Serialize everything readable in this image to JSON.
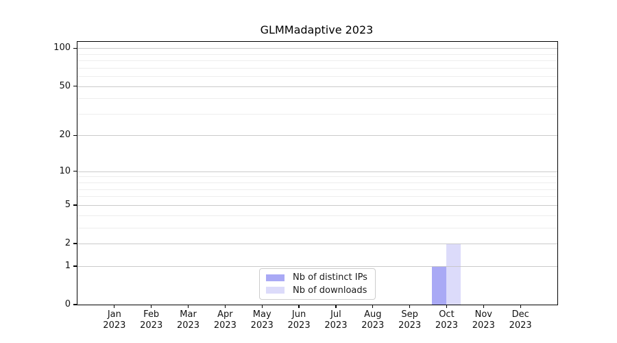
{
  "chart_data": {
    "type": "bar",
    "title": "GLMMadaptive 2023",
    "categories": [
      "Jan",
      "Feb",
      "Mar",
      "Apr",
      "May",
      "Jun",
      "Jul",
      "Aug",
      "Sep",
      "Oct",
      "Nov",
      "Dec"
    ],
    "category_year": "2023",
    "series": [
      {
        "name": "Nb of distinct IPs",
        "color": "#a9a9f5",
        "values": [
          0,
          0,
          0,
          0,
          0,
          0,
          0,
          0,
          0,
          1,
          0,
          0
        ]
      },
      {
        "name": "Nb of downloads",
        "color": "#dcdbfa",
        "values": [
          0,
          0,
          0,
          0,
          0,
          0,
          0,
          0,
          0,
          2,
          0,
          0
        ]
      }
    ],
    "y_axis": {
      "scale": "log1p",
      "tick_values": [
        0,
        1,
        2,
        5,
        10,
        20,
        50,
        100
      ],
      "minor_gridlines": [
        3,
        4,
        6,
        7,
        8,
        9,
        30,
        40,
        60,
        70,
        80,
        90
      ],
      "range": [
        0,
        113
      ]
    },
    "legend": {
      "position": "lower-center"
    },
    "grid": "on"
  }
}
